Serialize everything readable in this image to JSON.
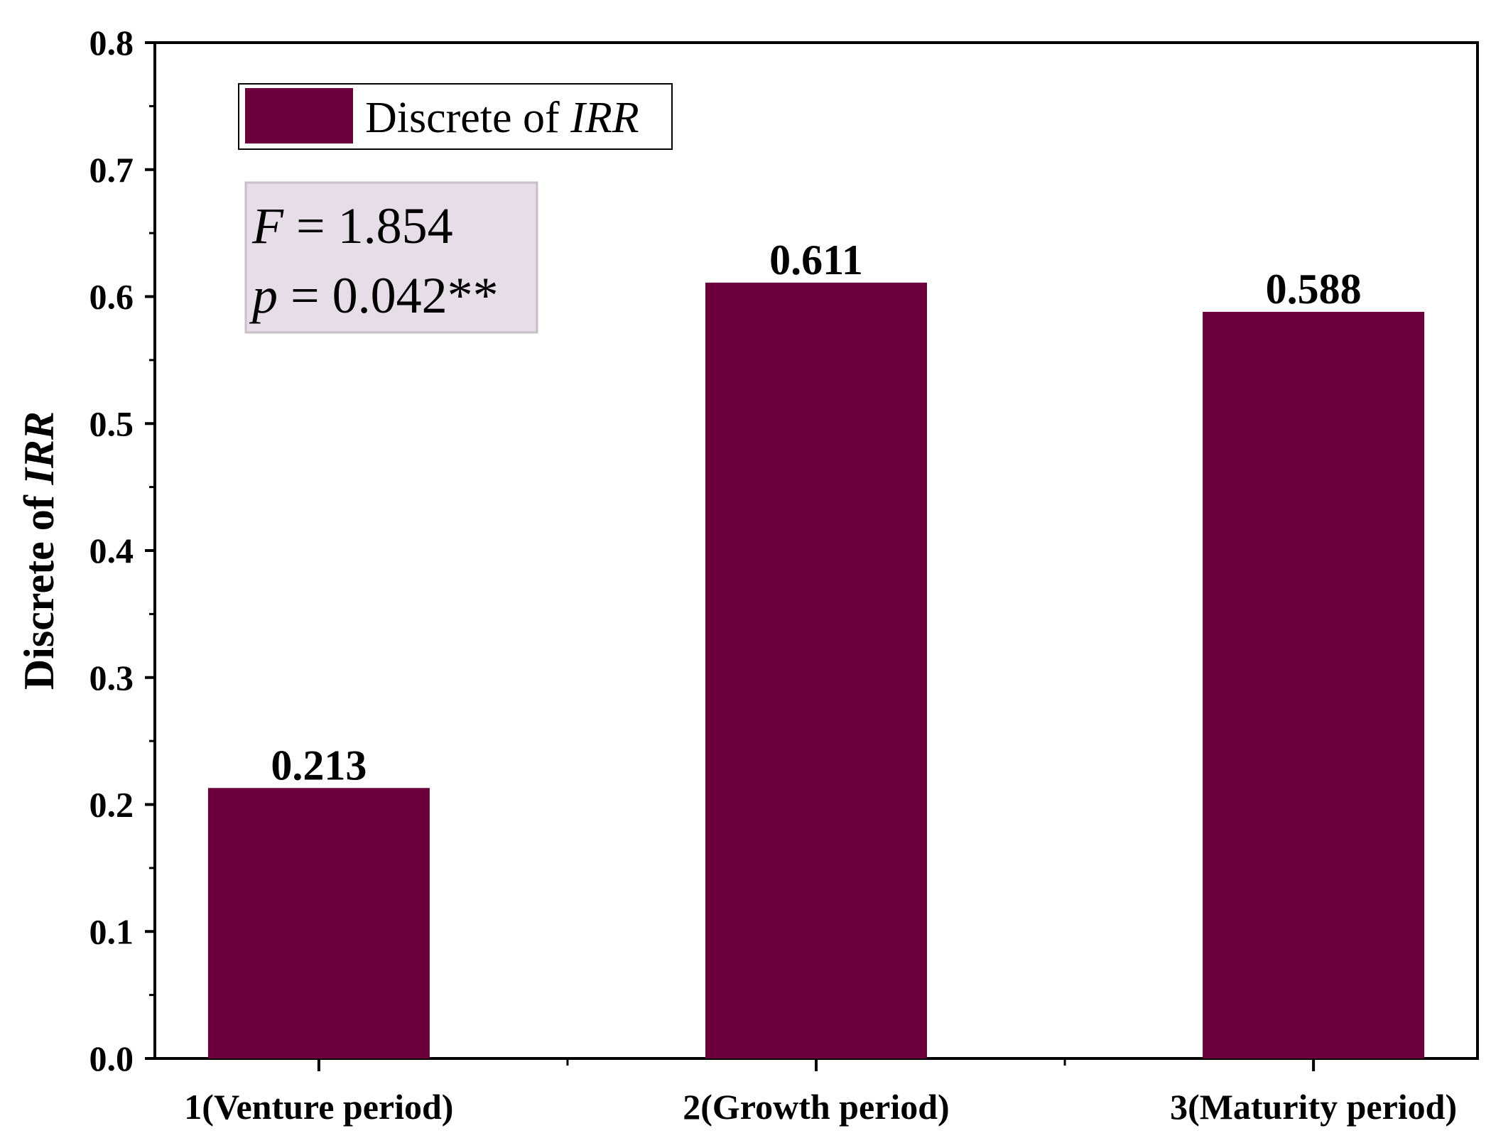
{
  "chart_data": {
    "type": "bar",
    "categories": [
      "1(Venture period)",
      "2(Growth period)",
      "3(Maturity period)"
    ],
    "series": [
      {
        "name": "Discrete of IRR",
        "values": [
          0.213,
          0.611,
          0.588
        ]
      }
    ],
    "data_labels": [
      "0.213",
      "0.611",
      "0.588"
    ],
    "ylabel": {
      "prefix": "Discrete of ",
      "italic": "IRR"
    },
    "xlabel": "",
    "ylim": [
      0,
      0.8
    ],
    "yticks": [
      0.0,
      0.1,
      0.2,
      0.3,
      0.4,
      0.5,
      0.6,
      0.7,
      0.8
    ],
    "ytick_labels": [
      "0.0",
      "0.1",
      "0.2",
      "0.3",
      "0.4",
      "0.5",
      "0.6",
      "0.7",
      "0.8"
    ],
    "legend": {
      "prefix": "Discrete of ",
      "italic": "IRR",
      "placement": "top-left"
    },
    "annotation": {
      "line1": {
        "var": "F",
        "text": " = 1.854"
      },
      "line2": {
        "var": "p",
        "text": " = 0.042**"
      },
      "placement": "top-left"
    },
    "grid": false,
    "bar_color": "#6b003c",
    "annotation_bg": "#e6dde8",
    "annotation_border": "#c8c0c8"
  }
}
